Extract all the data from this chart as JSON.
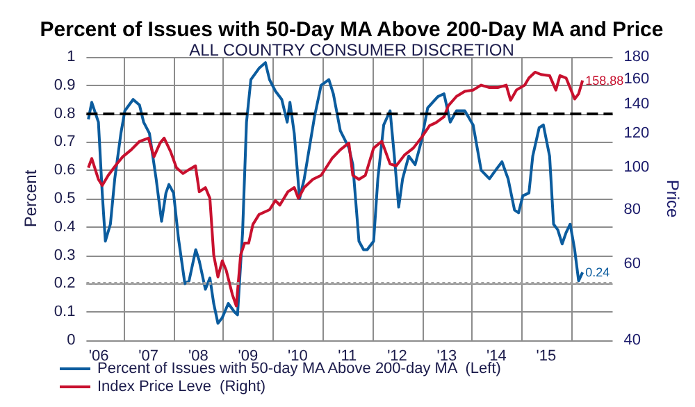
{
  "chart_data": {
    "type": "line",
    "title": "Percent of Issues with 50-Day MA Above 200-Day MA and Price",
    "subtitle": "ALL COUNTRY CONSUMER DISCRETION",
    "ylabel": "Percent",
    "y2label": "Price",
    "legend": "bottom",
    "grid": true,
    "log": "y2",
    "marker": "none",
    "line_style": "solid",
    "xlim": [
      "2006-04-01",
      "2016-10-31"
    ],
    "xticks": [
      {
        "value": "2006-07-01",
        "label": "'06"
      },
      {
        "value": "2007-01-01",
        "label": null
      },
      {
        "value": "2007-07-01",
        "label": "'07"
      },
      {
        "value": "2008-01-01",
        "label": null
      },
      {
        "value": "2008-07-01",
        "label": "'08"
      },
      {
        "value": "2009-01-01",
        "label": null
      },
      {
        "value": "2009-07-01",
        "label": "'09"
      },
      {
        "value": "2010-01-01",
        "label": null
      },
      {
        "value": "2010-07-01",
        "label": "'10"
      },
      {
        "value": "2011-01-01",
        "label": null
      },
      {
        "value": "2011-07-01",
        "label": "'11"
      },
      {
        "value": "2012-01-01",
        "label": null
      },
      {
        "value": "2012-07-01",
        "label": "'12"
      },
      {
        "value": "2013-01-01",
        "label": null
      },
      {
        "value": "2013-07-01",
        "label": "'13"
      },
      {
        "value": "2014-01-01",
        "label": null
      },
      {
        "value": "2014-07-01",
        "label": "'14"
      },
      {
        "value": "2015-01-01",
        "label": null
      },
      {
        "value": "2015-07-01",
        "label": "'15"
      },
      {
        "value": "2016-01-01",
        "label": null
      }
    ],
    "ylim": [
      0,
      1
    ],
    "yticks": [
      0,
      0.1,
      0.2,
      0.3,
      0.4,
      0.5,
      0.6,
      0.7,
      0.8,
      0.9,
      1
    ],
    "y2lim": [
      40,
      180
    ],
    "y2ticks": [
      40,
      60,
      80,
      100,
      120,
      140,
      160,
      180
    ],
    "ref_lines": [
      {
        "axis": "y",
        "value": 0.8,
        "label": null,
        "color": "#000000",
        "line_style": "dashed"
      },
      {
        "axis": "y",
        "value": 0.2,
        "label": null,
        "color": "#a0a0a0",
        "line_style": "dotted"
      }
    ],
    "series": [
      {
        "name": "Percent of Issues with 50-day MA Above 200-day MA  (Left)",
        "color": "#0b5c9e",
        "x": [
          "2006-04-15",
          "2006-05-10",
          "2006-06-28",
          "2006-07-26",
          "2006-08-18",
          "2006-09-24",
          "2006-10-26",
          "2006-12-10",
          "2007-01-08",
          "2007-03-10",
          "2007-04-26",
          "2007-05-26",
          "2007-07-08",
          "2007-08-26",
          "2007-10-05",
          "2007-11-06",
          "2007-11-28",
          "2008-01-01",
          "2008-02-06",
          "2008-03-24",
          "2008-04-24",
          "2008-06-12",
          "2008-07-08",
          "2008-08-22",
          "2008-09-24",
          "2008-10-22",
          "2008-11-22",
          "2008-12-24",
          "2009-02-06",
          "2009-03-24",
          "2009-04-15",
          "2009-05-22",
          "2009-06-20",
          "2009-07-22",
          "2009-09-20",
          "2009-11-06",
          "2009-12-06",
          "2010-01-18",
          "2010-03-06",
          "2010-04-15",
          "2010-05-05",
          "2010-06-06",
          "2010-07-15",
          "2010-08-18",
          "2010-11-02",
          "2010-12-20",
          "2011-02-15",
          "2011-03-20",
          "2011-05-10",
          "2011-07-12",
          "2011-08-10",
          "2011-09-24",
          "2011-10-28",
          "2011-11-24",
          "2012-01-10",
          "2012-02-10",
          "2012-03-24",
          "2012-05-10",
          "2012-06-10",
          "2012-07-12",
          "2012-08-10",
          "2012-09-24",
          "2012-11-10",
          "2012-12-24",
          "2013-02-10",
          "2013-04-26",
          "2013-06-10",
          "2013-07-26",
          "2013-09-10",
          "2013-11-10",
          "2014-01-10",
          "2014-03-10",
          "2014-05-10",
          "2014-06-24",
          "2014-08-10",
          "2014-09-24",
          "2014-11-10",
          "2014-12-10",
          "2015-01-10",
          "2015-02-24",
          "2015-03-24",
          "2015-05-10",
          "2015-06-10",
          "2015-07-26",
          "2015-08-24",
          "2015-09-24",
          "2015-10-26",
          "2015-11-24",
          "2015-12-24",
          "2016-01-26",
          "2016-02-24",
          "2016-03-24"
        ],
        "values": [
          0.78,
          0.84,
          0.77,
          0.52,
          0.35,
          0.41,
          0.57,
          0.73,
          0.81,
          0.85,
          0.83,
          0.77,
          0.73,
          0.57,
          0.42,
          0.52,
          0.55,
          0.52,
          0.36,
          0.2,
          0.21,
          0.32,
          0.28,
          0.18,
          0.22,
          0.13,
          0.06,
          0.08,
          0.13,
          0.1,
          0.09,
          0.38,
          0.77,
          0.92,
          0.96,
          0.98,
          0.92,
          0.88,
          0.85,
          0.77,
          0.84,
          0.73,
          0.5,
          0.57,
          0.79,
          0.9,
          0.92,
          0.87,
          0.74,
          0.68,
          0.62,
          0.35,
          0.32,
          0.32,
          0.35,
          0.57,
          0.76,
          0.81,
          0.65,
          0.47,
          0.57,
          0.65,
          0.62,
          0.7,
          0.82,
          0.86,
          0.87,
          0.77,
          0.81,
          0.81,
          0.76,
          0.6,
          0.57,
          0.6,
          0.63,
          0.57,
          0.46,
          0.45,
          0.51,
          0.52,
          0.65,
          0.75,
          0.76,
          0.65,
          0.41,
          0.39,
          0.34,
          0.38,
          0.41,
          0.32,
          0.21,
          0.24
        ],
        "value_labels": [
          null,
          null,
          null,
          null,
          null,
          null,
          null,
          null,
          null,
          null,
          null,
          null,
          null,
          null,
          null,
          null,
          null,
          null,
          null,
          null,
          null,
          null,
          null,
          null,
          null,
          null,
          null,
          null,
          null,
          null,
          null,
          null,
          null,
          null,
          null,
          null,
          null,
          null,
          null,
          null,
          null,
          null,
          null,
          null,
          null,
          null,
          null,
          null,
          null,
          null,
          null,
          null,
          null,
          null,
          null,
          null,
          null,
          null,
          null,
          null,
          null,
          null,
          null,
          null,
          null,
          null,
          null,
          null,
          null,
          null,
          null,
          null,
          null,
          null,
          null,
          null,
          null,
          null,
          null,
          null,
          null,
          null,
          null,
          null,
          null,
          null,
          null,
          null,
          null,
          null,
          null,
          "0.24"
        ]
      },
      {
        "name": "Index Price Leve  (Right)",
        "color": "#c8102e",
        "axis": "y2",
        "x": [
          "2006-04-15",
          "2006-05-10",
          "2006-06-28",
          "2006-07-26",
          "2006-09-08",
          "2006-11-10",
          "2006-12-24",
          "2007-02-24",
          "2007-04-26",
          "2007-07-01",
          "2007-08-10",
          "2007-09-24",
          "2007-10-24",
          "2007-12-10",
          "2008-01-22",
          "2008-03-10",
          "2008-04-24",
          "2008-06-10",
          "2008-07-08",
          "2008-08-22",
          "2008-09-24",
          "2008-10-22",
          "2008-11-22",
          "2008-12-24",
          "2009-01-22",
          "2009-03-08",
          "2009-04-06",
          "2009-05-08",
          "2009-06-06",
          "2009-07-06",
          "2009-08-06",
          "2009-09-20",
          "2009-12-06",
          "2010-01-18",
          "2010-02-20",
          "2010-04-20",
          "2010-06-06",
          "2010-07-06",
          "2010-08-18",
          "2010-10-20",
          "2010-12-20",
          "2011-03-10",
          "2011-05-10",
          "2011-07-12",
          "2011-08-10",
          "2011-09-24",
          "2011-11-10",
          "2012-01-10",
          "2012-03-10",
          "2012-05-10",
          "2012-06-24",
          "2012-08-24",
          "2012-10-28",
          "2012-12-24",
          "2013-02-24",
          "2013-04-12",
          "2013-06-10",
          "2013-07-12",
          "2013-09-10",
          "2013-11-10",
          "2014-01-10",
          "2014-03-10",
          "2014-05-10",
          "2014-07-10",
          "2014-09-10",
          "2014-10-12",
          "2014-11-24",
          "2015-01-24",
          "2015-02-24",
          "2015-04-10",
          "2015-05-24",
          "2015-07-26",
          "2015-09-10",
          "2015-10-10",
          "2015-11-24",
          "2016-01-26",
          "2016-02-24",
          "2016-03-24"
        ],
        "values": [
          100,
          105,
          94,
          91,
          96,
          102,
          106,
          110,
          115,
          117,
          106,
          114,
          117,
          109,
          100,
          97,
          99,
          101,
          88,
          90,
          85,
          63,
          56,
          61,
          58,
          51,
          48,
          63,
          67,
          67,
          74,
          78,
          80,
          84,
          82,
          88,
          90,
          85,
          90,
          94,
          96,
          105,
          110,
          114,
          96,
          94,
          96,
          111,
          115,
          102,
          101,
          107,
          111,
          117,
          125,
          127,
          131,
          139,
          146,
          150,
          151,
          155,
          153,
          153,
          155,
          143,
          151,
          155,
          161,
          166,
          164,
          163,
          151,
          163,
          161,
          144,
          148,
          158.88
        ],
        "value_labels": [
          null,
          null,
          null,
          null,
          null,
          null,
          null,
          null,
          null,
          null,
          null,
          null,
          null,
          null,
          null,
          null,
          null,
          null,
          null,
          null,
          null,
          null,
          null,
          null,
          null,
          null,
          null,
          null,
          null,
          null,
          null,
          null,
          null,
          null,
          null,
          null,
          null,
          null,
          null,
          null,
          null,
          null,
          null,
          null,
          null,
          null,
          null,
          null,
          null,
          null,
          null,
          null,
          null,
          null,
          null,
          null,
          null,
          null,
          null,
          null,
          null,
          null,
          null,
          null,
          null,
          null,
          null,
          null,
          null,
          null,
          null,
          null,
          null,
          null,
          null,
          null,
          null,
          "158.88"
        ]
      }
    ]
  }
}
